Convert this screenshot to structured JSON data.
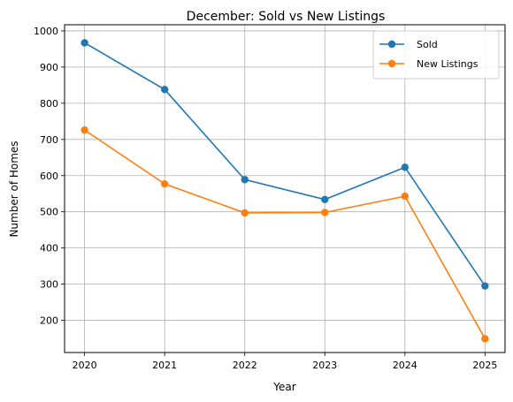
{
  "chart_data": {
    "type": "line",
    "title": "December: Sold vs New Listings",
    "xlabel": "Year",
    "ylabel": "Number of Homes",
    "x": [
      2020,
      2021,
      2022,
      2023,
      2024,
      2025
    ],
    "x_ticks": [
      "2020",
      "2021",
      "2022",
      "2023",
      "2024",
      "2025"
    ],
    "y_ticks": [
      "200",
      "300",
      "400",
      "500",
      "600",
      "700",
      "800",
      "900",
      "1000"
    ],
    "y_tick_values": [
      200,
      300,
      400,
      500,
      600,
      700,
      800,
      900,
      1000
    ],
    "xlim": [
      2019.75,
      2025.25
    ],
    "ylim": [
      111,
      1017
    ],
    "grid": true,
    "legend_position": "top-right",
    "series": [
      {
        "name": "Sold",
        "color": "#1f77b4",
        "marker": "circle",
        "values": [
          967,
          838,
          589,
          534,
          623,
          295
        ]
      },
      {
        "name": "New Listings",
        "color": "#ff7f0e",
        "marker": "circle",
        "values": [
          726,
          577,
          497,
          498,
          543,
          149
        ]
      }
    ]
  }
}
